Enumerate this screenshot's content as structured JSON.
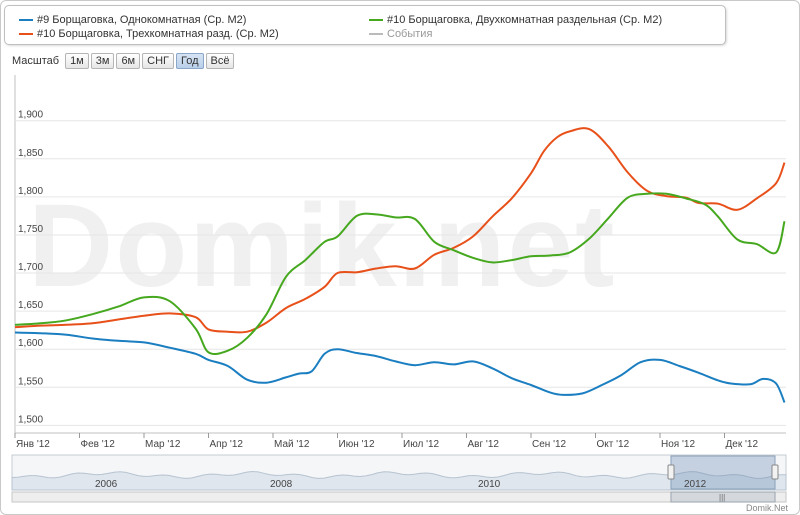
{
  "legend": {
    "items": [
      {
        "label": "#9 Борщаговка, Однокомнатная (Ср. М2)",
        "color": "#1a7ec1"
      },
      {
        "label": "#10 Борщаговка, Трехкомнатная разд. (Ср. М2)",
        "color": "#e8501a"
      },
      {
        "label": "#10 Борщаговка, Двухкомнатная раздельная (Ср. М2)",
        "color": "#45a81e"
      },
      {
        "label": "События",
        "color": "#bbbbbb"
      }
    ]
  },
  "range_selector": {
    "label": "Масштаб",
    "buttons": [
      "1м",
      "3м",
      "6м",
      "СНГ",
      "Год",
      "Всё"
    ],
    "active": "Год"
  },
  "watermark": "Domik.net",
  "credit": "Domik.Net",
  "chart_data": {
    "type": "line",
    "x_ticks": [
      "Янв '12",
      "Фев '12",
      "Мар '12",
      "Апр '12",
      "Май '12",
      "Июн '12",
      "Июл '12",
      "Авг '12",
      "Сен '12",
      "Окт '12",
      "Ноя '12",
      "Дек '12"
    ],
    "y_ticks": [
      "1,500",
      "1,550",
      "1,600",
      "1,650",
      "1,700",
      "1,750",
      "1,800",
      "1,850",
      "1,900"
    ],
    "ylim": [
      1490,
      1960
    ],
    "xlim": [
      0,
      11.93
    ],
    "grid": true,
    "series": [
      {
        "name": "#9 Борщаговка, Однокомнатная (Ср. М2)",
        "color": "#1a7ec1",
        "x": [
          0,
          0.4,
          0.8,
          1.2,
          1.6,
          2.0,
          2.4,
          2.8,
          3.0,
          3.3,
          3.6,
          3.9,
          4.2,
          4.4,
          4.6,
          4.8,
          5.0,
          5.3,
          5.6,
          5.9,
          6.2,
          6.5,
          6.8,
          7.1,
          7.4,
          7.7,
          8.0,
          8.3,
          8.5,
          8.8,
          9.1,
          9.4,
          9.7,
          10.0,
          10.3,
          10.6,
          10.9,
          11.1,
          11.4,
          11.6,
          11.8,
          11.93
        ],
        "y": [
          1622,
          1621,
          1619,
          1614,
          1611,
          1609,
          1602,
          1594,
          1586,
          1578,
          1560,
          1556,
          1563,
          1568,
          1571,
          1594,
          1600,
          1595,
          1591,
          1584,
          1579,
          1583,
          1580,
          1584,
          1575,
          1562,
          1553,
          1543,
          1540,
          1542,
          1553,
          1566,
          1583,
          1586,
          1578,
          1569,
          1559,
          1555,
          1554,
          1561,
          1555,
          1530
        ]
      },
      {
        "name": "#10 Борщаговка, Трехкомнатная разд. (Ср. М2)",
        "color": "#e8501a",
        "x": [
          0,
          0.4,
          0.8,
          1.2,
          1.6,
          2.0,
          2.4,
          2.8,
          3.0,
          3.3,
          3.6,
          3.9,
          4.2,
          4.5,
          4.8,
          5.0,
          5.3,
          5.6,
          5.9,
          6.2,
          6.5,
          6.8,
          7.1,
          7.4,
          7.7,
          8.0,
          8.2,
          8.4,
          8.6,
          8.9,
          9.2,
          9.5,
          9.8,
          10.1,
          10.4,
          10.6,
          10.9,
          11.2,
          11.5,
          11.8,
          11.93
        ],
        "y": [
          1629,
          1631,
          1632,
          1634,
          1639,
          1644,
          1647,
          1642,
          1626,
          1623,
          1623,
          1635,
          1654,
          1666,
          1682,
          1700,
          1701,
          1706,
          1709,
          1706,
          1724,
          1733,
          1748,
          1774,
          1798,
          1831,
          1860,
          1878,
          1886,
          1889,
          1866,
          1832,
          1808,
          1801,
          1799,
          1792,
          1791,
          1783,
          1798,
          1818,
          1845
        ]
      },
      {
        "name": "#10 Борщаговка, Двухкомнатная раздельная (Ср. М2)",
        "color": "#45a81e",
        "x": [
          0,
          0.4,
          0.8,
          1.2,
          1.6,
          2.0,
          2.4,
          2.8,
          3.0,
          3.3,
          3.6,
          3.9,
          4.2,
          4.5,
          4.8,
          5.0,
          5.3,
          5.6,
          5.9,
          6.2,
          6.5,
          6.8,
          7.1,
          7.4,
          7.7,
          8.0,
          8.3,
          8.6,
          8.9,
          9.2,
          9.5,
          9.8,
          10.1,
          10.4,
          10.7,
          10.9,
          11.2,
          11.5,
          11.8,
          11.93
        ],
        "y": [
          1632,
          1634,
          1638,
          1646,
          1656,
          1668,
          1663,
          1627,
          1596,
          1598,
          1615,
          1646,
          1695,
          1717,
          1741,
          1748,
          1775,
          1777,
          1773,
          1771,
          1741,
          1730,
          1720,
          1714,
          1717,
          1722,
          1723,
          1727,
          1745,
          1772,
          1799,
          1804,
          1804,
          1798,
          1790,
          1774,
          1744,
          1738,
          1727,
          1768
        ]
      }
    ],
    "navigator": {
      "labels": [
        "2006",
        "2008",
        "2010",
        "2012"
      ]
    }
  }
}
